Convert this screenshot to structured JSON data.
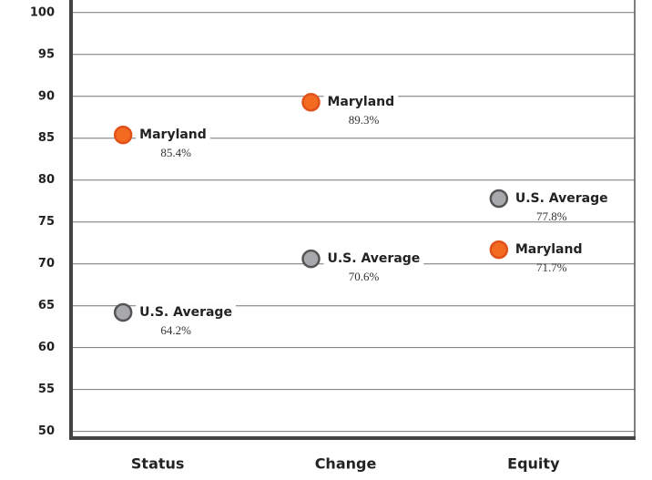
{
  "chart_data": {
    "type": "dot",
    "categories": [
      "Status",
      "Change",
      "Equity"
    ],
    "series": [
      {
        "name": "Maryland",
        "color": "#f26b21",
        "values": [
          85.4,
          89.3,
          71.7
        ],
        "value_labels": [
          "85.4%",
          "89.3%",
          "71.7%"
        ]
      },
      {
        "name": "U.S. Average",
        "color": "#a7a9ac",
        "values": [
          64.2,
          70.6,
          77.8
        ],
        "value_labels": [
          "64.2%",
          "70.6%",
          "77.8%"
        ]
      }
    ],
    "ylim": [
      49.2,
      101.5
    ],
    "yticks": [
      50,
      55,
      60,
      65,
      70,
      75,
      80,
      85,
      90,
      95,
      100
    ],
    "grid": true
  }
}
